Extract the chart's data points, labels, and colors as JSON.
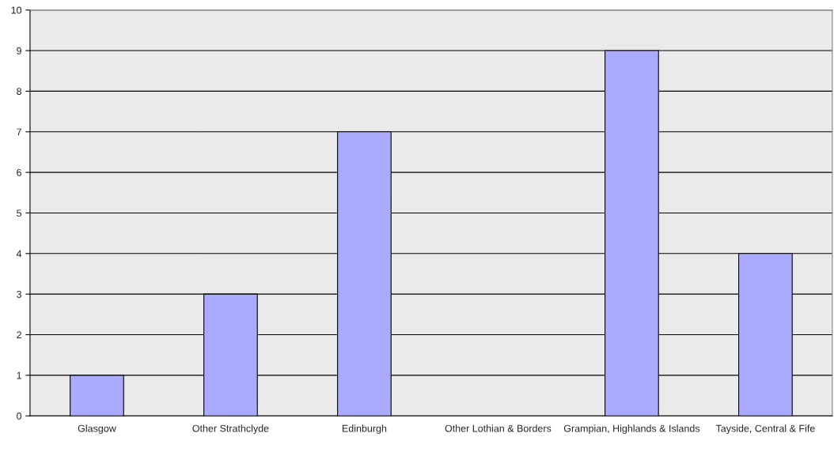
{
  "chart_data": {
    "type": "bar",
    "categories": [
      "Glasgow",
      "Other Strathclyde",
      "Edinburgh",
      "Other Lothian & Borders",
      "Grampian, Highlands & Islands",
      "Tayside, Central & Fife"
    ],
    "values": [
      1,
      3,
      7,
      0,
      9,
      4
    ],
    "color": "#aaaaff",
    "ylim": [
      0,
      10
    ],
    "yticks": [
      0,
      1,
      2,
      3,
      4,
      5,
      6,
      7,
      8,
      9,
      10
    ],
    "grid": "y",
    "legend": false
  }
}
